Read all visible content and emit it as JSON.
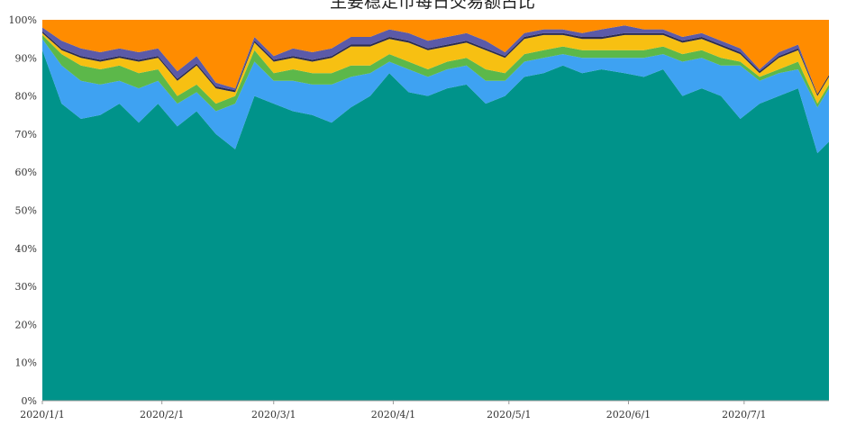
{
  "chart_data": {
    "type": "area",
    "stacked": "percent",
    "title": "主要稳定币每日交易额占比",
    "xlabel": "",
    "ylabel": "",
    "ylim": [
      0,
      100
    ],
    "grid": false,
    "x_ticks": [
      "2020/1/1",
      "2020/2/1",
      "2020/3/1",
      "2020/4/1",
      "2020/5/1",
      "2020/6/1",
      "2020/7/1"
    ],
    "y_ticks": [
      "0%",
      "10%",
      "20%",
      "30%",
      "40%",
      "50%",
      "60%",
      "70%",
      "80%",
      "90%",
      "100%"
    ],
    "x": [
      "2020-01-01",
      "2020-01-06",
      "2020-01-11",
      "2020-01-16",
      "2020-01-21",
      "2020-01-26",
      "2020-01-31",
      "2020-02-05",
      "2020-02-10",
      "2020-02-15",
      "2020-02-20",
      "2020-02-25",
      "2020-03-01",
      "2020-03-06",
      "2020-03-11",
      "2020-03-16",
      "2020-03-21",
      "2020-03-26",
      "2020-03-31",
      "2020-04-05",
      "2020-04-10",
      "2020-04-15",
      "2020-04-20",
      "2020-04-25",
      "2020-04-30",
      "2020-05-05",
      "2020-05-10",
      "2020-05-15",
      "2020-05-20",
      "2020-05-25",
      "2020-05-31",
      "2020-06-05",
      "2020-06-10",
      "2020-06-15",
      "2020-06-20",
      "2020-06-25",
      "2020-06-30",
      "2020-07-05",
      "2020-07-10",
      "2020-07-15",
      "2020-07-20",
      "2020-07-23"
    ],
    "series": [
      {
        "color": "#00938a",
        "values": [
          92,
          78,
          74,
          75,
          78,
          73,
          78,
          72,
          76,
          70,
          66,
          80,
          78,
          76,
          75,
          73,
          77,
          80,
          86,
          81,
          80,
          82,
          83,
          78,
          80,
          85,
          86,
          88,
          86,
          87,
          86,
          85,
          87,
          80,
          82,
          80,
          74,
          78,
          80,
          82,
          65,
          68
        ]
      },
      {
        "color": "#3ea2f2",
        "values": [
          3,
          10,
          10,
          8,
          6,
          9,
          6,
          6,
          5,
          6,
          12,
          9,
          6,
          8,
          8,
          10,
          8,
          6,
          3,
          6,
          5,
          5,
          5,
          6,
          4,
          4,
          4,
          3,
          4,
          3,
          4,
          5,
          4,
          9,
          8,
          8,
          14,
          6,
          6,
          5,
          12,
          14
        ]
      },
      {
        "color": "#5cb84a",
        "values": [
          1,
          3,
          4,
          4,
          4,
          4,
          3,
          2,
          2,
          2,
          2,
          3,
          2,
          3,
          3,
          3,
          3,
          2,
          2,
          2,
          2,
          2,
          2,
          3,
          2,
          2,
          2,
          2,
          2,
          2,
          2,
          2,
          2,
          2,
          2,
          2,
          1,
          1,
          1,
          2,
          1,
          1
        ]
      },
      {
        "color": "#f7c012",
        "values": [
          0.5,
          1,
          2,
          2,
          2,
          3,
          3,
          4,
          5,
          4,
          1,
          2,
          3,
          3,
          3,
          4,
          5,
          5,
          4,
          5,
          5,
          4,
          4,
          5,
          4,
          4,
          4,
          3,
          3,
          3,
          4,
          4,
          3,
          3,
          3,
          3,
          2,
          1,
          3,
          3,
          2,
          2
        ]
      },
      {
        "color": "#2b2b4e",
        "values": [
          0.5,
          0.5,
          0.5,
          0.5,
          0.5,
          0.5,
          0.5,
          0.5,
          0.5,
          0.5,
          0.5,
          0.5,
          0.5,
          0.5,
          0.5,
          0.5,
          0.5,
          0.5,
          0.5,
          0.5,
          0.5,
          0.5,
          0.5,
          0.5,
          0.5,
          0.5,
          0.5,
          0.5,
          0.5,
          0.5,
          0.5,
          0.5,
          0.5,
          0.5,
          0.5,
          0.5,
          0.5,
          0.5,
          0.5,
          0.5,
          0.5,
          0.5
        ]
      },
      {
        "color": "#5b5aa8",
        "values": [
          1,
          2,
          2,
          2,
          2,
          2,
          2,
          2,
          2,
          1,
          0.5,
          1,
          1,
          2,
          2,
          2,
          2,
          2,
          2,
          2,
          2,
          2,
          2,
          2,
          1,
          1,
          1,
          1,
          1,
          2,
          2,
          1,
          1,
          1,
          1,
          1,
          1,
          0.5,
          1,
          1,
          0,
          0
        ]
      },
      {
        "color": "#ff8c00",
        "values": [
          2,
          5.5,
          7.5,
          8.5,
          7.5,
          8.5,
          7.5,
          13.5,
          9.5,
          16.5,
          18,
          4.5,
          9.5,
          7.5,
          8.5,
          7.5,
          4.5,
          4.5,
          2.5,
          3.5,
          5.5,
          4.5,
          3.5,
          5.5,
          8.5,
          3.5,
          2.5,
          2.5,
          3.5,
          2.5,
          1.5,
          2.5,
          2.5,
          4.5,
          3.5,
          5.5,
          7.5,
          13,
          8.5,
          6.5,
          19.5,
          14.5
        ]
      }
    ]
  }
}
